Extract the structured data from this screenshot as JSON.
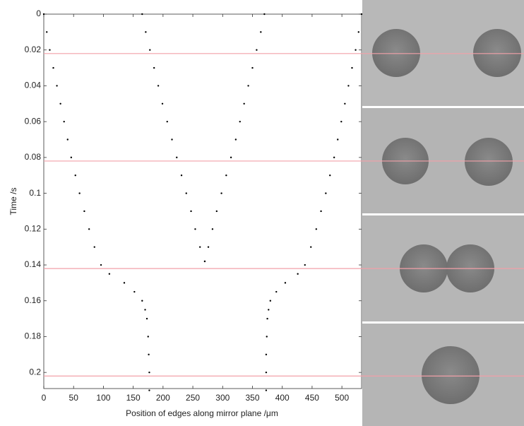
{
  "chart_data": {
    "type": "scatter",
    "x_label": "Position of edges along mirror plane /μm",
    "y_label": "Time /s",
    "xlim": [
      0,
      533
    ],
    "ylim": [
      0,
      0.209
    ],
    "y_reversed": true,
    "xticks": [
      0,
      50,
      100,
      150,
      200,
      250,
      300,
      350,
      400,
      450,
      500
    ],
    "yticks": [
      0,
      0.02,
      0.04,
      0.06,
      0.08,
      0.1,
      0.12,
      0.14,
      0.16,
      0.18,
      0.2
    ],
    "reference_lines": [
      0.022,
      0.082,
      0.142,
      0.202
    ],
    "reference_color": "#f2a0a8",
    "series": [
      {
        "color": "#000000",
        "x": [
          0,
          5,
          10,
          16,
          22,
          28,
          34,
          40,
          46,
          53,
          60,
          68,
          76,
          85,
          96,
          110,
          135,
          152,
          165,
          170,
          173,
          175,
          176,
          177,
          177
        ],
        "y": [
          0,
          0.01,
          0.02,
          0.03,
          0.04,
          0.05,
          0.06,
          0.07,
          0.08,
          0.09,
          0.1,
          0.11,
          0.12,
          0.13,
          0.14,
          0.145,
          0.15,
          0.155,
          0.16,
          0.165,
          0.17,
          0.18,
          0.19,
          0.2,
          0.21
        ]
      },
      {
        "color": "#000000",
        "x": [
          165,
          171,
          178,
          185,
          192,
          199,
          207,
          215,
          223,
          231,
          239,
          247,
          254,
          262,
          270
        ],
        "y": [
          0,
          0.01,
          0.02,
          0.03,
          0.04,
          0.05,
          0.06,
          0.07,
          0.08,
          0.09,
          0.1,
          0.11,
          0.12,
          0.13,
          0.138
        ]
      },
      {
        "color": "#000000",
        "x": [
          370,
          364,
          357,
          350,
          343,
          336,
          329,
          322,
          314,
          306,
          298,
          290,
          283,
          276,
          270
        ],
        "y": [
          0,
          0.01,
          0.02,
          0.03,
          0.04,
          0.05,
          0.06,
          0.07,
          0.08,
          0.09,
          0.1,
          0.11,
          0.12,
          0.13,
          0.138
        ]
      },
      {
        "color": "#000000",
        "x": [
          533,
          528,
          523,
          517,
          511,
          505,
          499,
          493,
          487,
          480,
          473,
          465,
          457,
          448,
          438,
          426,
          405,
          390,
          380,
          377,
          375,
          374,
          373,
          373,
          373
        ],
        "y": [
          0,
          0.01,
          0.02,
          0.03,
          0.04,
          0.05,
          0.06,
          0.07,
          0.08,
          0.09,
          0.1,
          0.11,
          0.12,
          0.13,
          0.14,
          0.145,
          0.15,
          0.155,
          0.16,
          0.165,
          0.17,
          0.18,
          0.19,
          0.2,
          0.21
        ]
      }
    ]
  }
}
